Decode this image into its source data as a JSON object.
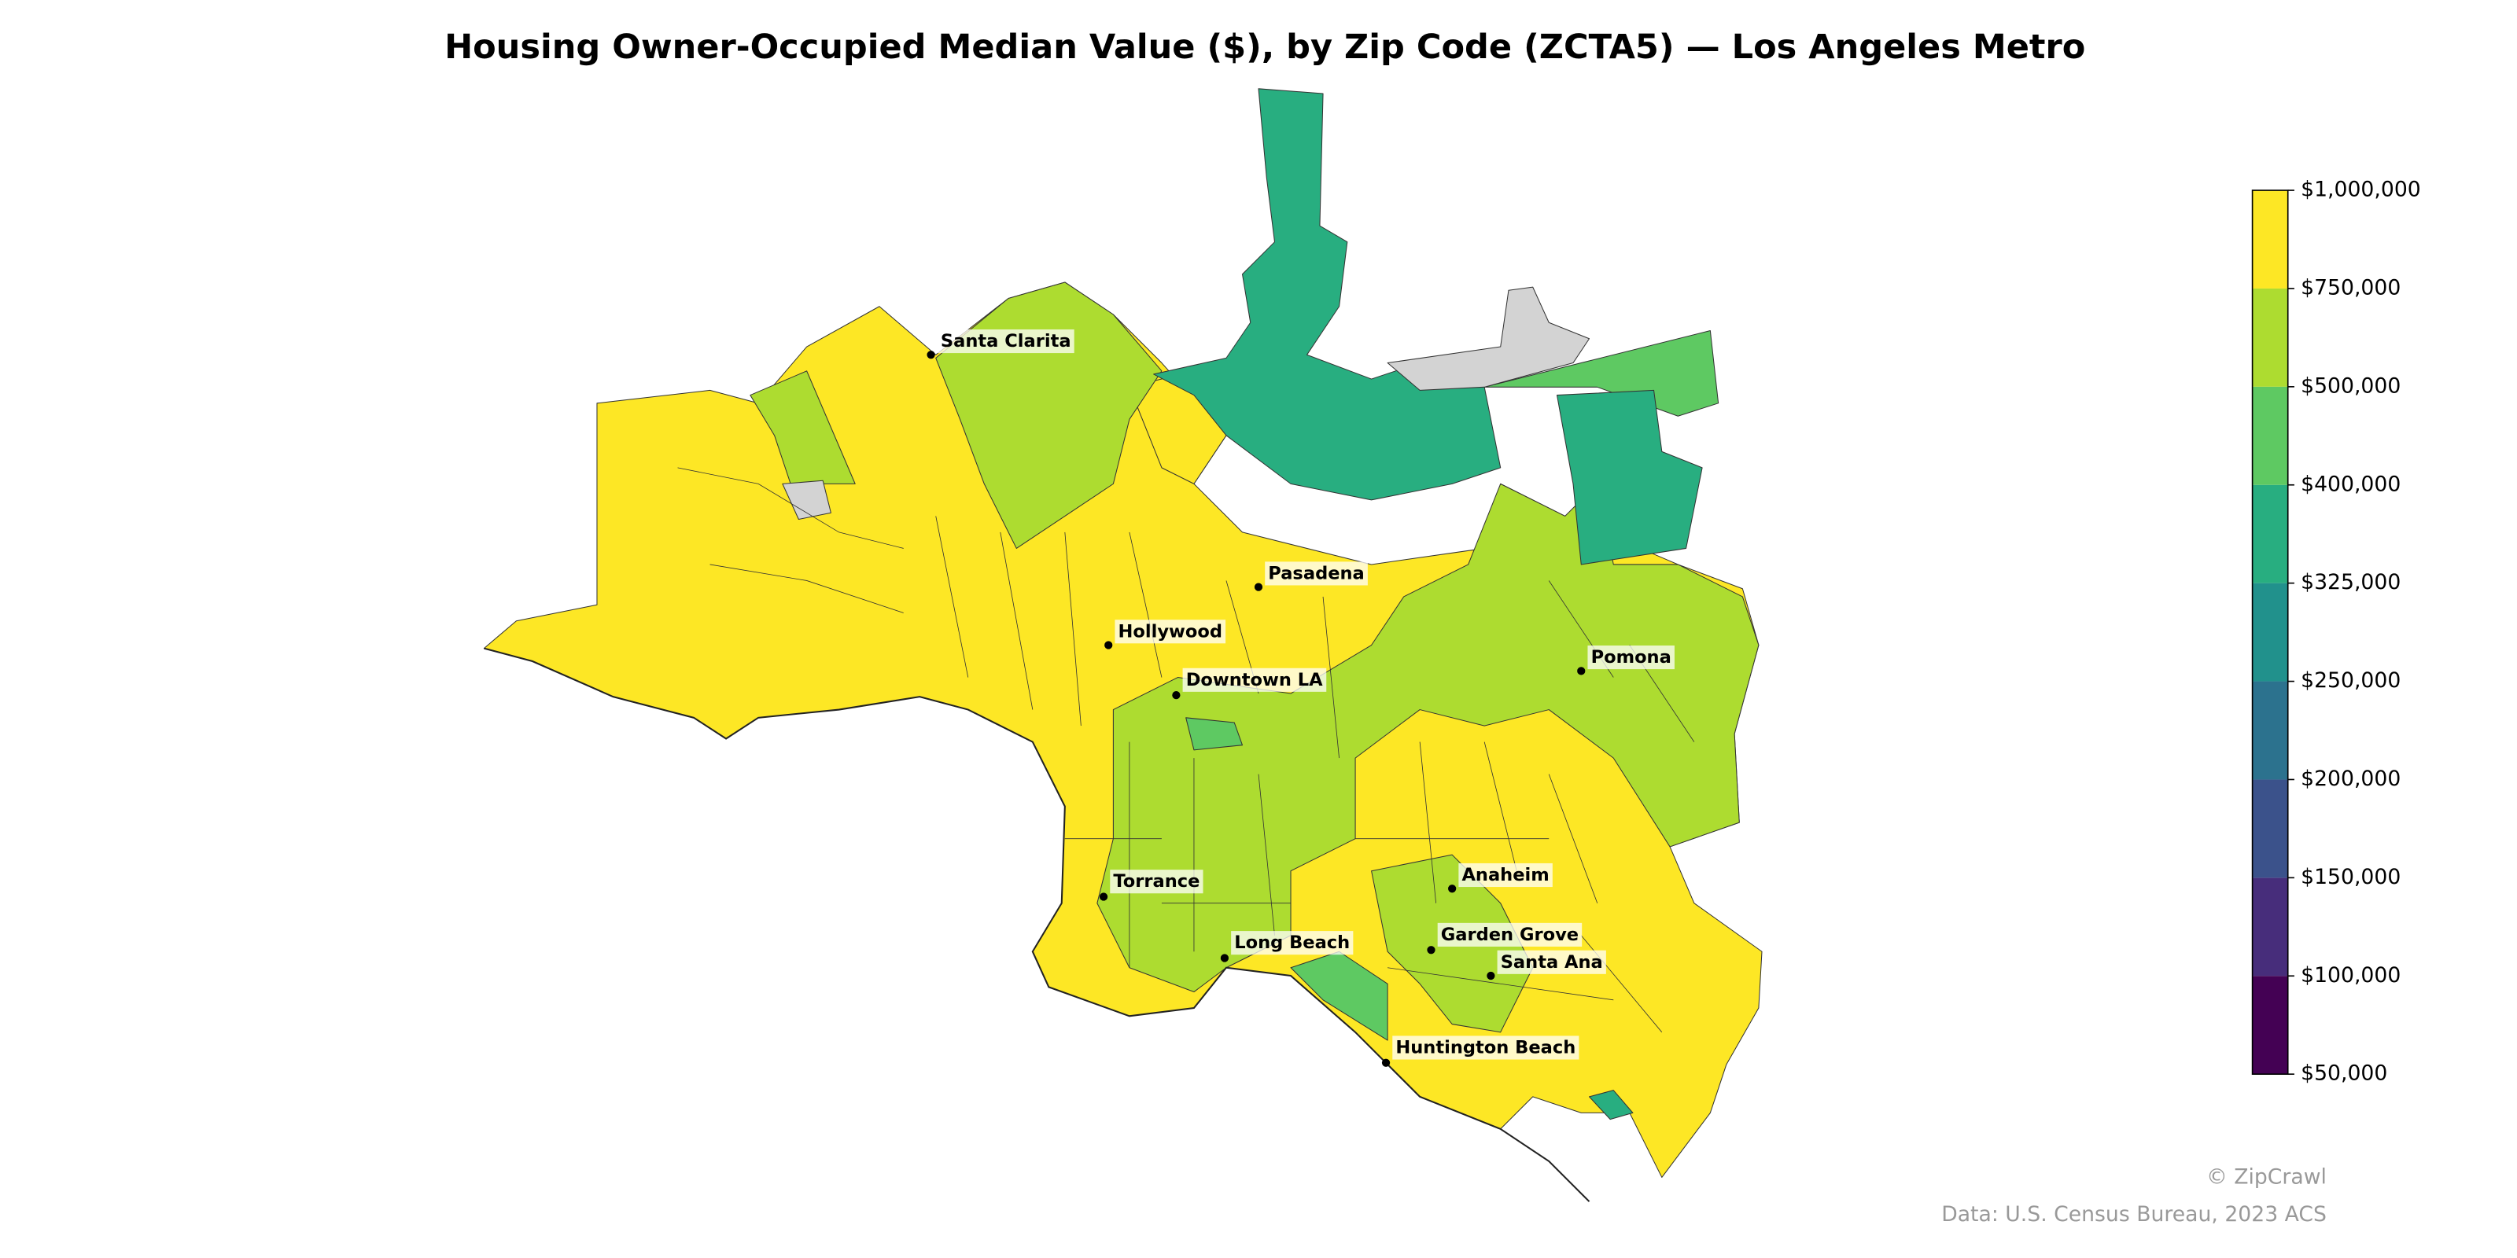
{
  "title": "Housing Owner-Occupied Median Value ($), by Zip Code (ZCTA5) — Los Angeles Metro",
  "map": {
    "type": "choropleth",
    "colorbar": {
      "ticks": [
        {
          "value": 50000,
          "label": "$50,000"
        },
        {
          "value": 100000,
          "label": "$100,000"
        },
        {
          "value": 150000,
          "label": "$150,000"
        },
        {
          "value": 200000,
          "label": "$200,000"
        },
        {
          "value": 250000,
          "label": "$250,000"
        },
        {
          "value": 325000,
          "label": "$325,000"
        },
        {
          "value": 400000,
          "label": "$400,000"
        },
        {
          "value": 500000,
          "label": "$500,000"
        },
        {
          "value": 750000,
          "label": "$750,000"
        },
        {
          "value": 1000000,
          "label": "$1,000,000"
        }
      ],
      "colors": [
        "#440154",
        "#472d7b",
        "#3b528b",
        "#2c728e",
        "#21918c",
        "#28ae80",
        "#5ec962",
        "#addc30",
        "#fde725"
      ]
    },
    "no_data_color": "#d3d3d3",
    "cities": [
      "Santa Clarita",
      "Pasadena",
      "Hollywood",
      "Downtown LA",
      "Pomona",
      "Torrance",
      "Anaheim",
      "Long Beach",
      "Garden Grove",
      "Santa Ana",
      "Huntington Beach"
    ]
  },
  "credits": [
    "© ZipCrawl",
    "Data: U.S. Census Bureau, 2023 ACS"
  ]
}
